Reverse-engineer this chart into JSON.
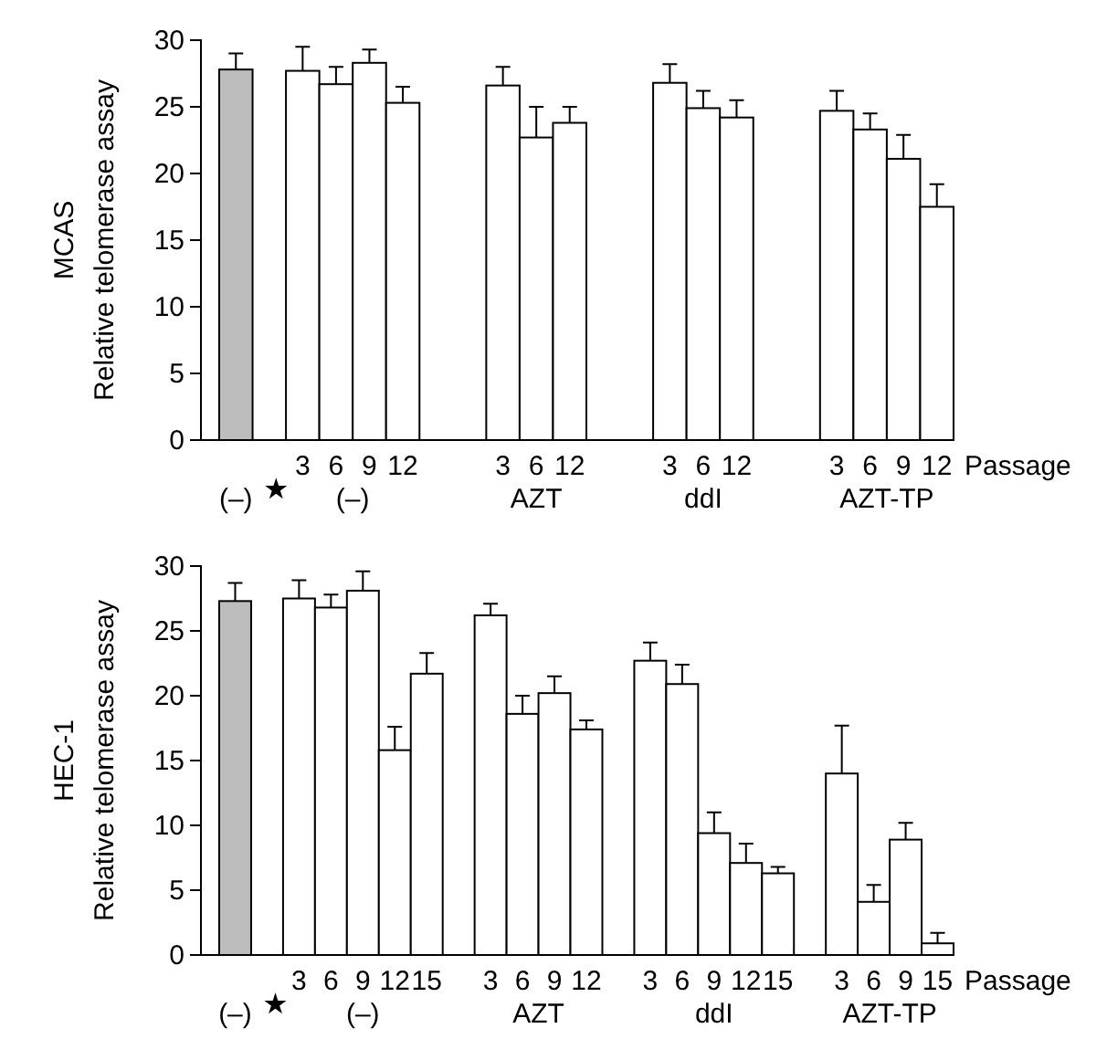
{
  "chart_data": [
    {
      "type": "bar",
      "title": "MCAS",
      "ylabel": "Relative telomerase assay",
      "categories": [
        null,
        null,
        "3",
        "6",
        "9",
        "12",
        null,
        null,
        "3",
        "6",
        "12",
        null,
        null,
        "3",
        "6",
        "12",
        null,
        null,
        "3",
        "6",
        "9",
        "12"
      ],
      "values": [
        27.8,
        null,
        27.7,
        26.7,
        28.3,
        25.3,
        null,
        null,
        26.6,
        22.7,
        23.8,
        null,
        null,
        26.8,
        24.9,
        24.2,
        null,
        null,
        24.7,
        23.3,
        21.1,
        17.5
      ],
      "errors": [
        [
          27.8,
          29.0
        ],
        null,
        [
          27.7,
          29.5
        ],
        [
          26.7,
          28.0
        ],
        [
          28.3,
          29.3
        ],
        [
          25.3,
          26.5
        ],
        null,
        null,
        [
          26.6,
          28.0
        ],
        [
          22.7,
          25.0
        ],
        [
          23.8,
          25.0
        ],
        null,
        null,
        [
          26.8,
          28.2
        ],
        [
          24.9,
          26.2
        ],
        [
          24.2,
          25.5
        ],
        null,
        null,
        [
          24.7,
          26.2
        ],
        [
          23.3,
          24.5
        ],
        [
          21.1,
          22.9
        ],
        [
          17.5,
          19.2
        ]
      ],
      "colors": [
        "#bdbdbd",
        null,
        "#ffffff",
        "#ffffff",
        "#ffffff",
        "#ffffff",
        null,
        null,
        "#ffffff",
        "#ffffff",
        "#ffffff",
        null,
        null,
        "#ffffff",
        "#ffffff",
        "#ffffff",
        null,
        null,
        "#ffffff",
        "#ffffff",
        "#ffffff",
        "#ffffff"
      ],
      "ylim": [
        0,
        30
      ],
      "yticks": [
        0,
        5,
        10,
        15,
        20,
        25,
        30
      ],
      "annotations": [
        "(–)",
        "(–)",
        "AZT",
        "ddI",
        "AZT-TP",
        "Passage"
      ]
    },
    {
      "type": "bar",
      "title": "HEC-1",
      "ylabel": "Relative telomerase assay",
      "categories": [
        null,
        null,
        "3",
        "6",
        "9",
        "12",
        "15",
        null,
        "3",
        "6",
        "9",
        "12",
        null,
        "3",
        "6",
        "9",
        "12",
        "15",
        null,
        "3",
        "6",
        "9",
        "15"
      ],
      "values": [
        27.3,
        null,
        27.5,
        26.8,
        28.1,
        15.8,
        21.7,
        null,
        26.2,
        18.6,
        20.2,
        17.4,
        null,
        22.7,
        20.9,
        9.4,
        7.1,
        6.3,
        null,
        14.0,
        4.1,
        8.9,
        0.9
      ],
      "errors": [
        [
          27.3,
          28.7
        ],
        null,
        [
          27.5,
          28.9
        ],
        [
          26.8,
          27.8
        ],
        [
          28.1,
          29.6
        ],
        [
          15.8,
          17.6
        ],
        [
          21.7,
          23.3
        ],
        null,
        [
          26.2,
          27.1
        ],
        [
          18.6,
          20.0
        ],
        [
          20.2,
          21.5
        ],
        [
          17.4,
          18.1
        ],
        null,
        [
          22.7,
          24.1
        ],
        [
          20.9,
          22.4
        ],
        [
          9.4,
          11.0
        ],
        [
          7.1,
          8.6
        ],
        [
          6.3,
          6.8
        ],
        null,
        [
          14.0,
          17.7
        ],
        [
          4.1,
          5.4
        ],
        [
          8.9,
          10.2
        ],
        [
          0.9,
          1.7
        ]
      ],
      "colors": [
        "#bdbdbd",
        null,
        "#ffffff",
        "#ffffff",
        "#ffffff",
        "#ffffff",
        "#ffffff",
        null,
        "#ffffff",
        "#ffffff",
        "#ffffff",
        "#ffffff",
        null,
        "#ffffff",
        "#ffffff",
        "#ffffff",
        "#ffffff",
        "#ffffff",
        null,
        "#ffffff",
        "#ffffff",
        "#ffffff",
        "#ffffff"
      ],
      "ylim": [
        0,
        30
      ],
      "yticks": [
        0,
        5,
        10,
        15,
        20,
        25,
        30
      ],
      "annotations": [
        "(–)",
        "(–)",
        "AZT",
        "ddI",
        "AZT-TP",
        "Passage"
      ]
    }
  ]
}
